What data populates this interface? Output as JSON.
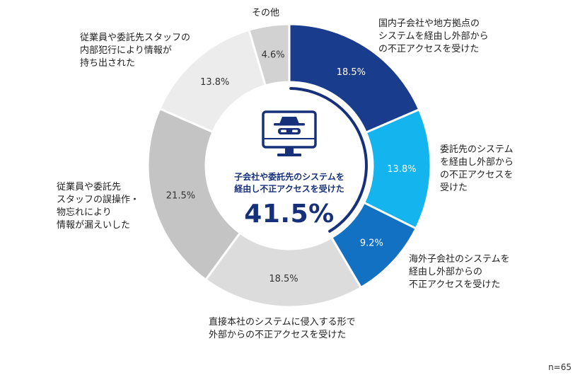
{
  "chart_data": {
    "type": "donut",
    "total_label": "n=65",
    "center": {
      "title": "子会社や委託先のシステムを\n経由し不正アクセスを受けた",
      "value": "41.5%"
    },
    "slices": [
      {
        "label": "国内子会社や地方拠点の\nシステムを経由し外部から\nの不正アクセスを受けた",
        "value": 18.5,
        "value_label": "18.5%",
        "color": "#1a3c8c",
        "value_color": "#ffffff"
      },
      {
        "label": "委託先のシステム\nを経由し外部から\nの不正アクセスを\n受けた",
        "value": 13.8,
        "value_label": "13.8%",
        "color": "#14b4ee",
        "value_color": "#ffffff"
      },
      {
        "label": "海外子会社のシステムを\n経由し外部からの\n不正アクセスを受けた",
        "value": 9.2,
        "value_label": "9.2%",
        "color": "#1371c4",
        "value_color": "#ffffff"
      },
      {
        "label": "直接本社のシステムに侵入する形で\n外部からの不正アクセスを受けた",
        "value": 18.5,
        "value_label": "18.5%",
        "color": "#dcdcdc",
        "value_color": "#333333"
      },
      {
        "label": "従業員や委託先\nスタッフの誤操作・\n物忘れにより\n情報が漏えいした",
        "value": 21.5,
        "value_label": "21.5%",
        "color": "#c4c4c4",
        "value_color": "#333333"
      },
      {
        "label": "従業員や委託先スタッフの\n内部犯行により情報が\n持ち出された",
        "value": 13.8,
        "value_label": "13.8%",
        "color": "#ececec",
        "value_color": "#333333"
      },
      {
        "label": "その他",
        "value": 4.6,
        "value_label": "4.6%",
        "color": "#d2d2d2",
        "value_color": "#333333"
      }
    ],
    "highlight_slices": [
      0,
      1,
      2
    ],
    "icon": "monitor-spy-icon",
    "highlight_color": "#17307a"
  }
}
